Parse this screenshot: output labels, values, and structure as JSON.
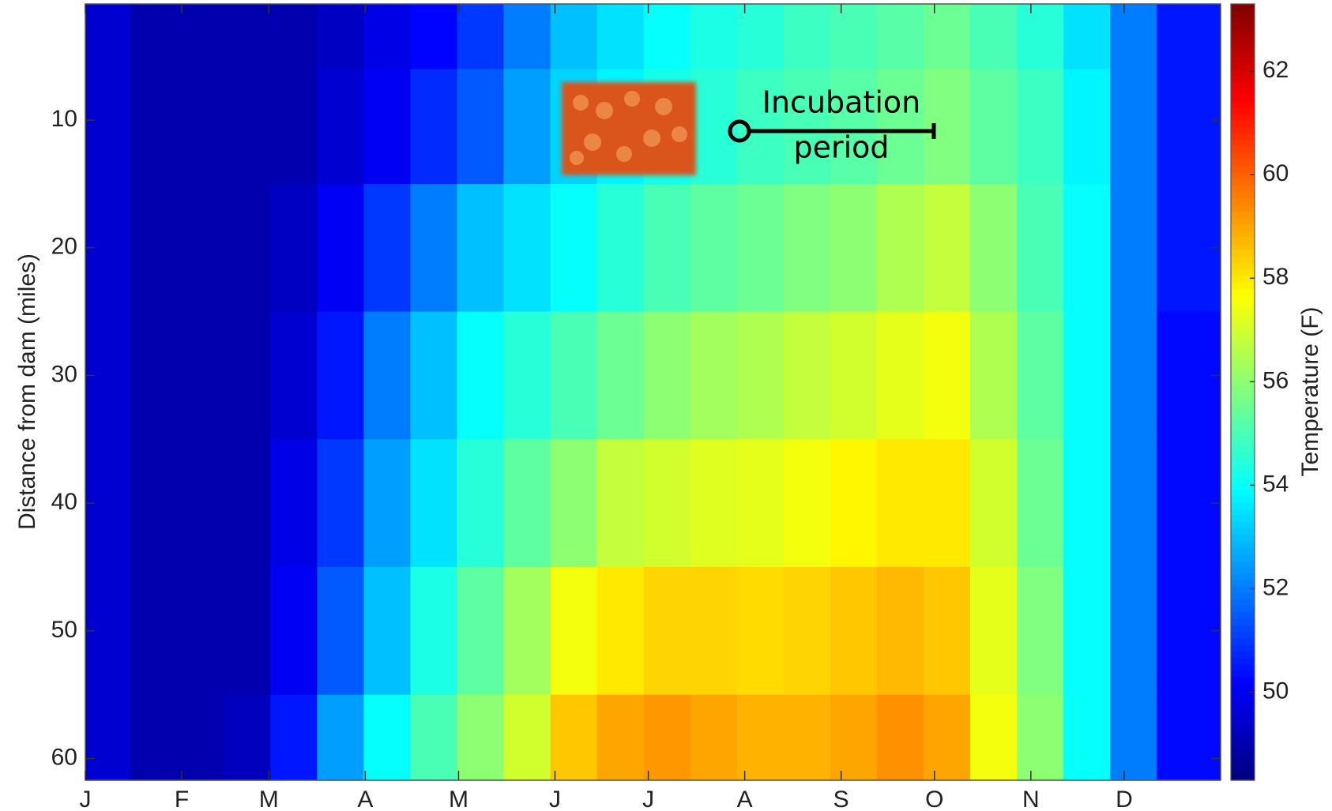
{
  "chart_data": {
    "type": "heatmap",
    "y_label": "Distance from dam (miles)",
    "colorbar_label": "Temperature (F)",
    "annotation": [
      "Incubation",
      "period"
    ],
    "xlim": [
      1,
      366
    ],
    "xticks": [
      {
        "value": 1,
        "label": "J"
      },
      {
        "value": 32,
        "label": "F"
      },
      {
        "value": 60,
        "label": "M"
      },
      {
        "value": 91,
        "label": "A"
      },
      {
        "value": 121,
        "label": "M"
      },
      {
        "value": 152,
        "label": "J"
      },
      {
        "value": 182,
        "label": "J"
      },
      {
        "value": 213,
        "label": "A"
      },
      {
        "value": 244,
        "label": "S"
      },
      {
        "value": 274,
        "label": "O"
      },
      {
        "value": 305,
        "label": "N"
      },
      {
        "value": 335,
        "label": "D"
      }
    ],
    "ylim": [
      0.9,
      61.7
    ],
    "y_inverted": true,
    "yticks": [
      10,
      20,
      30,
      40,
      50,
      60
    ],
    "clim": [
      48.3,
      63.3
    ],
    "cticks": [
      50,
      52,
      54,
      56,
      58,
      60,
      62
    ],
    "colormap": "jet",
    "x": [
      8,
      23,
      38,
      53,
      68,
      83,
      98,
      113,
      128,
      143,
      158,
      173,
      188,
      203,
      218,
      233,
      248,
      263,
      278,
      293,
      308,
      323,
      338,
      353
    ],
    "y": [
      2,
      10,
      20,
      30,
      40,
      50,
      60
    ],
    "z": [
      [
        49.5,
        49,
        49,
        49,
        49,
        49.3,
        49.8,
        50.2,
        51,
        52,
        53,
        53.5,
        54,
        54.3,
        54.5,
        54.8,
        55,
        55.2,
        55.5,
        55,
        54.5,
        53.5,
        52,
        50.5
      ],
      [
        49.5,
        49,
        49,
        49,
        49,
        49.5,
        50,
        50.8,
        51.5,
        52.5,
        53.3,
        53.8,
        54.2,
        54.5,
        54.8,
        55,
        55.2,
        55.5,
        55.8,
        55.3,
        54.8,
        53.8,
        52,
        50.5
      ],
      [
        49.5,
        49,
        49,
        49,
        49.3,
        50,
        51,
        52,
        53,
        53.5,
        54,
        54.5,
        55,
        55.3,
        55.5,
        55.8,
        56,
        56.5,
        56.8,
        56,
        55,
        54,
        52,
        50.5
      ],
      [
        49.5,
        49,
        49,
        49,
        49.5,
        50.5,
        52,
        53,
        54,
        54.5,
        55,
        55.5,
        56,
        56.3,
        56.5,
        56.8,
        57,
        57.3,
        57.5,
        56.5,
        55.3,
        54,
        52,
        50.3
      ],
      [
        49.5,
        49,
        49,
        49,
        49.8,
        51,
        52.5,
        53.5,
        54.5,
        55.3,
        56,
        56.8,
        57,
        57.2,
        57.3,
        57.5,
        57.8,
        58,
        58,
        57,
        55.5,
        54,
        52,
        50.3
      ],
      [
        49.5,
        49,
        49,
        49,
        50,
        51.5,
        53,
        54.3,
        55.3,
        56.3,
        57.5,
        58,
        58.3,
        58.3,
        58.2,
        58.3,
        58.5,
        58.7,
        58.5,
        57.3,
        55.8,
        54,
        52,
        50.3
      ],
      [
        49.5,
        49,
        49,
        49.2,
        50.5,
        52.5,
        54,
        55,
        56,
        57,
        58.5,
        59,
        59.2,
        59,
        58.8,
        58.8,
        59,
        59.3,
        59,
        57.5,
        56,
        54,
        52,
        50.3
      ]
    ]
  }
}
